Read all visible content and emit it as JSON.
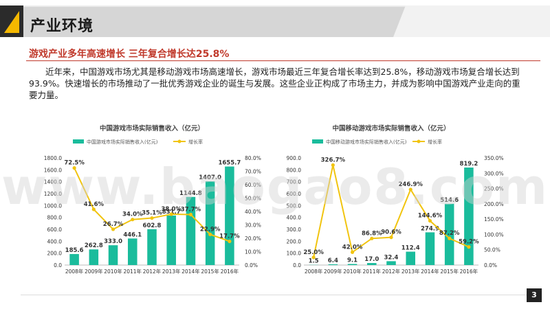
{
  "header": {
    "title": "产业环境"
  },
  "section": {
    "subtitle": "游戏产业多年高速增长 三年复合增长达25.8%",
    "paragraph": "近年来，中国游戏市场尤其是移动游戏市场高速增长，游戏市场最近三年复合增长率达到25.8%，移动游戏市场复合增长达到93.9%。快速增长的市场推动了一批优秀游戏企业的诞生与发展。这些企业正构成了市场主力，并成为影响中国游戏产业走向的重要力量。"
  },
  "watermark": "www.baogao8.com",
  "page_number": "3",
  "colors": {
    "bar": "#1abc9c",
    "line": "#f1c40f",
    "accent": "#c0392b",
    "header_square": "#f5b800"
  },
  "chart_data": [
    {
      "type": "bar",
      "title": "中国游戏市场实际销售收入（亿元）",
      "categories": [
        "2008年",
        "2009年",
        "2010年",
        "2011年",
        "2012年",
        "2013年",
        "2014年",
        "2015年",
        "2016年"
      ],
      "series": [
        {
          "name": "中国游戏市场实际销售收入(亿元)",
          "type": "bar",
          "axis": "left",
          "values": [
            185.6,
            262.8,
            333.0,
            446.1,
            602.8,
            831.7,
            1144.8,
            1407.0,
            1655.7
          ],
          "labels": [
            "185.6",
            "262.8",
            "333.0",
            "446.1",
            "602.8",
            "831.7",
            "1144.8",
            "1407.0",
            "1655.7"
          ]
        },
        {
          "name": "增长率",
          "type": "line",
          "axis": "right",
          "values": [
            72.5,
            41.6,
            26.7,
            34.0,
            35.1,
            38.0,
            37.7,
            22.9,
            17.7
          ],
          "labels": [
            "72.5%",
            "41.6%",
            "26.7%",
            "34.0%",
            "35.1%",
            "38.0%",
            "37.7%",
            "22.9%",
            "17.7%"
          ]
        }
      ],
      "y_left": {
        "min": 0,
        "max": 1800,
        "ticks": [
          "0.0",
          "200.0",
          "400.0",
          "600.0",
          "800.0",
          "1000.0",
          "1200.0",
          "1400.0",
          "1600.0",
          "1800.0"
        ]
      },
      "y_right": {
        "min": 0,
        "max": 80,
        "ticks": [
          "0.0%",
          "10.0%",
          "20.0%",
          "30.0%",
          "40.0%",
          "50.0%",
          "60.0%",
          "70.0%",
          "80.0%"
        ]
      },
      "legend_position": "top"
    },
    {
      "type": "bar",
      "title": "中国移动游戏市场实际销售收入（亿元）",
      "categories": [
        "2008年",
        "2009年",
        "2010年",
        "2011年",
        "2012年",
        "2013年",
        "2014年",
        "2015年",
        "2016年"
      ],
      "series": [
        {
          "name": "中国移动游戏市场实际销售收入(亿元)",
          "type": "bar",
          "axis": "left",
          "values": [
            1.5,
            6.4,
            9.1,
            17.0,
            32.4,
            112.4,
            274.9,
            514.6,
            819.2
          ],
          "labels": [
            "1.5",
            "6.4",
            "9.1",
            "17.0",
            "32.4",
            "112.4",
            "274.9",
            "514.6",
            "819.2"
          ]
        },
        {
          "name": "增长率",
          "type": "line",
          "axis": "right",
          "values": [
            25.0,
            326.7,
            42.0,
            86.8,
            90.6,
            246.9,
            144.6,
            87.2,
            59.2
          ],
          "labels": [
            "25.0%",
            "326.7%",
            "42.0%",
            "86.8%",
            "90.6%",
            "246.9%",
            "144.6%",
            "87.2%",
            "59.2%"
          ]
        }
      ],
      "y_left": {
        "min": 0,
        "max": 900,
        "ticks": [
          "0.0",
          "100.0",
          "200.0",
          "300.0",
          "400.0",
          "500.0",
          "600.0",
          "700.0",
          "800.0",
          "900.0"
        ]
      },
      "y_right": {
        "min": 0,
        "max": 350,
        "ticks": [
          "0.0%",
          "50.0%",
          "100.0%",
          "150.0%",
          "200.0%",
          "250.0%",
          "300.0%",
          "350.0%"
        ]
      },
      "legend_position": "top"
    }
  ]
}
